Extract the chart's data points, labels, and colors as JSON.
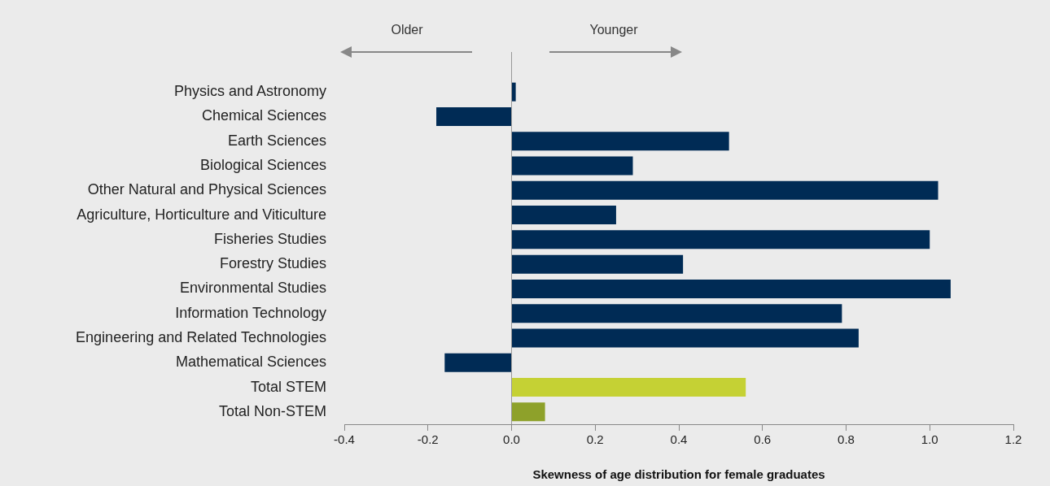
{
  "chart_data": {
    "type": "bar",
    "orientation": "horizontal",
    "xlabel": "Skewness of age distribution for female graduates",
    "categories": [
      "Physics and Astronomy",
      "Chemical Sciences",
      "Earth Sciences",
      "Biological Sciences",
      "Other Natural and Physical Sciences",
      "Agriculture, Horticulture and Viticulture",
      "Fisheries Studies",
      "Forestry Studies",
      "Environmental Studies",
      "Information Technology",
      "Engineering and Related Technologies",
      "Mathematical Sciences",
      "Total STEM",
      "Total Non-STEM"
    ],
    "values": [
      0.01,
      -0.18,
      0.52,
      0.29,
      1.02,
      0.25,
      1.0,
      0.41,
      1.05,
      0.79,
      0.83,
      -0.16,
      0.56,
      0.08
    ],
    "colors": [
      "#002b55",
      "#002b55",
      "#002b55",
      "#002b55",
      "#002b55",
      "#002b55",
      "#002b55",
      "#002b55",
      "#002b55",
      "#002b55",
      "#002b55",
      "#002b55",
      "#c5d134",
      "#8ea12a"
    ],
    "xlim": [
      -0.4,
      1.2
    ],
    "xticks": [
      {
        "value": -0.4,
        "label": "-0.4"
      },
      {
        "value": -0.2,
        "label": "-0.2"
      },
      {
        "value": 0,
        "label": "0.0"
      },
      {
        "value": 0.2,
        "label": "0.2"
      },
      {
        "value": 0.4,
        "label": "0.4"
      },
      {
        "value": 0.6,
        "label": "0.6"
      },
      {
        "value": 0.8,
        "label": "0.8"
      },
      {
        "value": 1.0,
        "label": "1.0"
      },
      {
        "value": 1.2,
        "label": "1.2"
      }
    ],
    "annotations": [
      "Older",
      "Younger"
    ],
    "ref_lines": [
      {
        "axis": "x",
        "value": 0,
        "color": "#999999"
      }
    ],
    "grid": false,
    "legend": false
  }
}
